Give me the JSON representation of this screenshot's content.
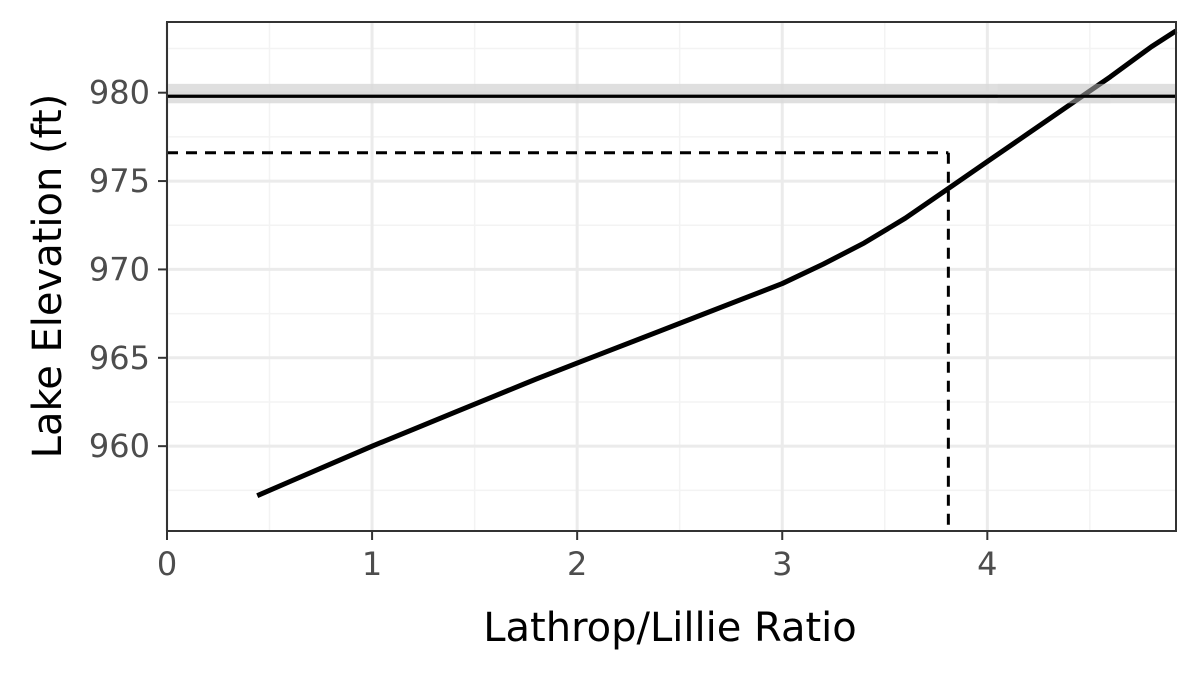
{
  "chart_data": {
    "type": "line",
    "title": "",
    "xlabel": "Lathrop/Lillie Ratio",
    "ylabel": "Lake Elevation (ft)",
    "xlim": [
      0,
      4.92
    ],
    "ylim": [
      955.2,
      984.0
    ],
    "x_ticks": [
      0,
      1,
      2,
      3,
      4
    ],
    "y_ticks": [
      960,
      965,
      970,
      975,
      980
    ],
    "x_minor_ticks": [
      0.5,
      1.5,
      2.5,
      3.5,
      4.5
    ],
    "y_minor_ticks": [
      957.5,
      962.5,
      967.5,
      972.5,
      977.5,
      982.5
    ],
    "grid": true,
    "series": [
      {
        "x": [
          0.44,
          0.6,
          0.8,
          1.0,
          1.2,
          1.4,
          1.6,
          1.8,
          2.0,
          2.2,
          2.4,
          2.6,
          2.8,
          3.0,
          3.2,
          3.4,
          3.6,
          3.8,
          4.0,
          4.2,
          4.4,
          4.6,
          4.8,
          4.92
        ],
        "y": [
          957.2,
          958.0,
          959.0,
          960.0,
          960.95,
          961.9,
          962.85,
          963.8,
          964.7,
          965.6,
          966.5,
          967.4,
          968.3,
          969.2,
          970.3,
          971.5,
          972.9,
          974.5,
          976.1,
          977.7,
          979.3,
          980.9,
          982.6,
          983.5
        ],
        "color": "#000000"
      }
    ],
    "reference_band": {
      "y_min": 979.4,
      "y_max": 980.5,
      "color": "#d9d9d9"
    },
    "reference_hline": {
      "y": 979.8,
      "color": "#000000"
    },
    "marker": {
      "x": 3.81,
      "y": 976.6,
      "style": "dashed",
      "color": "#000000"
    },
    "colors": {
      "panel_border": "#333333",
      "major_grid": "#ebebeb",
      "minor_grid": "#f3f3f3",
      "tick_label": "#4d4d4d",
      "axis_title": "#000000"
    }
  }
}
